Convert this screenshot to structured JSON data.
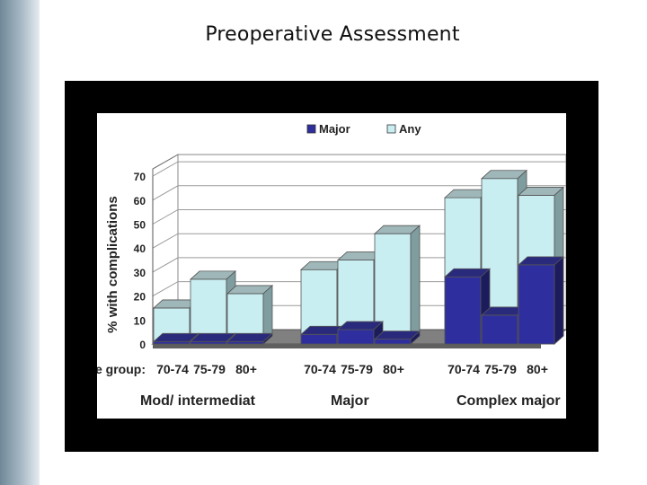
{
  "slide": {
    "title": "Preoperative Assessment"
  },
  "colors": {
    "major": "#2e2e9e",
    "any": "#c9eef2",
    "frame": "#000000"
  },
  "chart_data": {
    "type": "bar",
    "style": "3d-overlapping-columns",
    "ylabel": "% with complications",
    "xlabel_prefix": "e group:",
    "ylim": [
      0,
      70
    ],
    "yticks": [
      0,
      10,
      20,
      30,
      40,
      50,
      60,
      70
    ],
    "grid": true,
    "legend_position": "top",
    "groups": [
      {
        "name": "Mod/ intermediat",
        "categories": [
          "70-74",
          "75-79",
          "80+"
        ]
      },
      {
        "name": "Major",
        "categories": [
          "70-74",
          "75-79",
          "80+"
        ]
      },
      {
        "name": "Complex major",
        "categories": [
          "70-74",
          "75-79",
          "80+"
        ]
      }
    ],
    "categories": [
      "70-74",
      "75-79",
      "80+",
      "70-74",
      "75-79",
      "80+",
      "70-74",
      "75-79",
      "80+"
    ],
    "series": [
      {
        "name": "Major",
        "values": [
          1,
          1,
          1,
          4,
          6,
          2,
          28,
          12,
          33
        ]
      },
      {
        "name": "Any",
        "values": [
          15,
          27,
          21,
          31,
          35,
          46,
          61,
          69,
          62
        ]
      }
    ]
  }
}
